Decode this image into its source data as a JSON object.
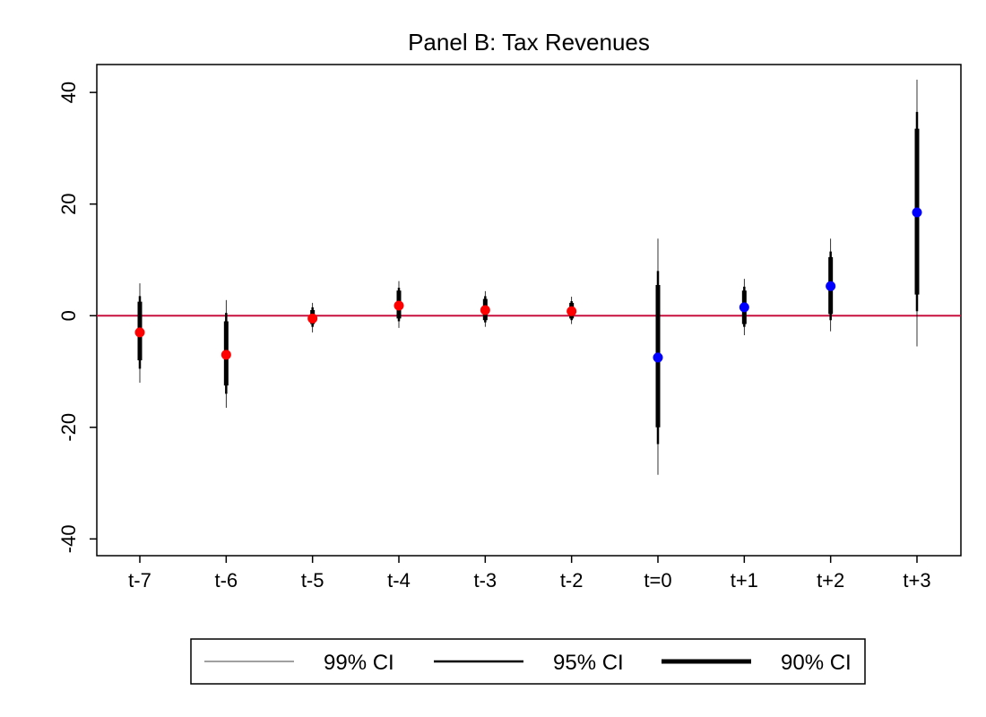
{
  "chart_data": {
    "type": "scatter",
    "title": "Panel B: Tax Revenues",
    "xlabel": "",
    "ylabel": "",
    "categories": [
      "t-7",
      "t-6",
      "t-5",
      "t-4",
      "t-3",
      "t-2",
      "t=0",
      "t+1",
      "t+2",
      "t+3"
    ],
    "ylim": [
      -43,
      45
    ],
    "yticks": [
      -40,
      -20,
      0,
      20,
      40
    ],
    "reference_line": 0,
    "points": [
      {
        "x": "t-7",
        "y": -3.0,
        "ci90": [
          -8.0,
          2.5
        ],
        "ci95": [
          -9.5,
          3.5
        ],
        "ci99": [
          -12.0,
          5.8
        ],
        "color": "#ff0000"
      },
      {
        "x": "t-6",
        "y": -7.0,
        "ci90": [
          -12.5,
          -1.0
        ],
        "ci95": [
          -14.0,
          0.5
        ],
        "ci99": [
          -16.5,
          2.8
        ],
        "color": "#ff0000"
      },
      {
        "x": "t-5",
        "y": -0.5,
        "ci90": [
          -1.5,
          1.0
        ],
        "ci95": [
          -2.0,
          1.5
        ],
        "ci99": [
          -3.0,
          2.3
        ],
        "color": "#ff0000"
      },
      {
        "x": "t-4",
        "y": 1.8,
        "ci90": [
          -0.5,
          4.5
        ],
        "ci95": [
          -1.0,
          5.0
        ],
        "ci99": [
          -2.2,
          6.2
        ],
        "color": "#ff0000"
      },
      {
        "x": "t-3",
        "y": 1.0,
        "ci90": [
          -0.8,
          3.0
        ],
        "ci95": [
          -1.2,
          3.5
        ],
        "ci99": [
          -2.0,
          4.4
        ],
        "color": "#ff0000"
      },
      {
        "x": "t-2",
        "y": 0.8,
        "ci90": [
          -0.5,
          2.3
        ],
        "ci95": [
          -0.8,
          2.6
        ],
        "ci99": [
          -1.5,
          3.4
        ],
        "color": "#ff0000"
      },
      {
        "x": "t=0",
        "y": -7.5,
        "ci90": [
          -20.0,
          5.5
        ],
        "ci95": [
          -23.0,
          8.0
        ],
        "ci99": [
          -28.5,
          13.8
        ],
        "color": "#0000ff"
      },
      {
        "x": "t+1",
        "y": 1.5,
        "ci90": [
          -1.5,
          4.5
        ],
        "ci95": [
          -2.0,
          5.2
        ],
        "ci99": [
          -3.5,
          6.6
        ],
        "color": "#0000ff"
      },
      {
        "x": "t+2",
        "y": 5.3,
        "ci90": [
          0.3,
          10.5
        ],
        "ci95": [
          -0.8,
          11.5
        ],
        "ci99": [
          -2.8,
          13.8
        ],
        "color": "#0000ff"
      },
      {
        "x": "t+3",
        "y": 18.5,
        "ci90": [
          3.8,
          33.5
        ],
        "ci95": [
          0.8,
          36.5
        ],
        "ci99": [
          -5.5,
          42.3
        ],
        "color": "#0000ff"
      }
    ],
    "legend": {
      "position": "bottom",
      "items": [
        {
          "label": "99% CI",
          "weight": "thin"
        },
        {
          "label": "95% CI",
          "weight": "medium"
        },
        {
          "label": "90% CI",
          "weight": "thick"
        }
      ]
    },
    "colors": {
      "pre_period": "#ff0000",
      "post_period": "#0000ff",
      "reference_line": "#c8103e",
      "ci": "#000000"
    },
    "grid": false
  }
}
